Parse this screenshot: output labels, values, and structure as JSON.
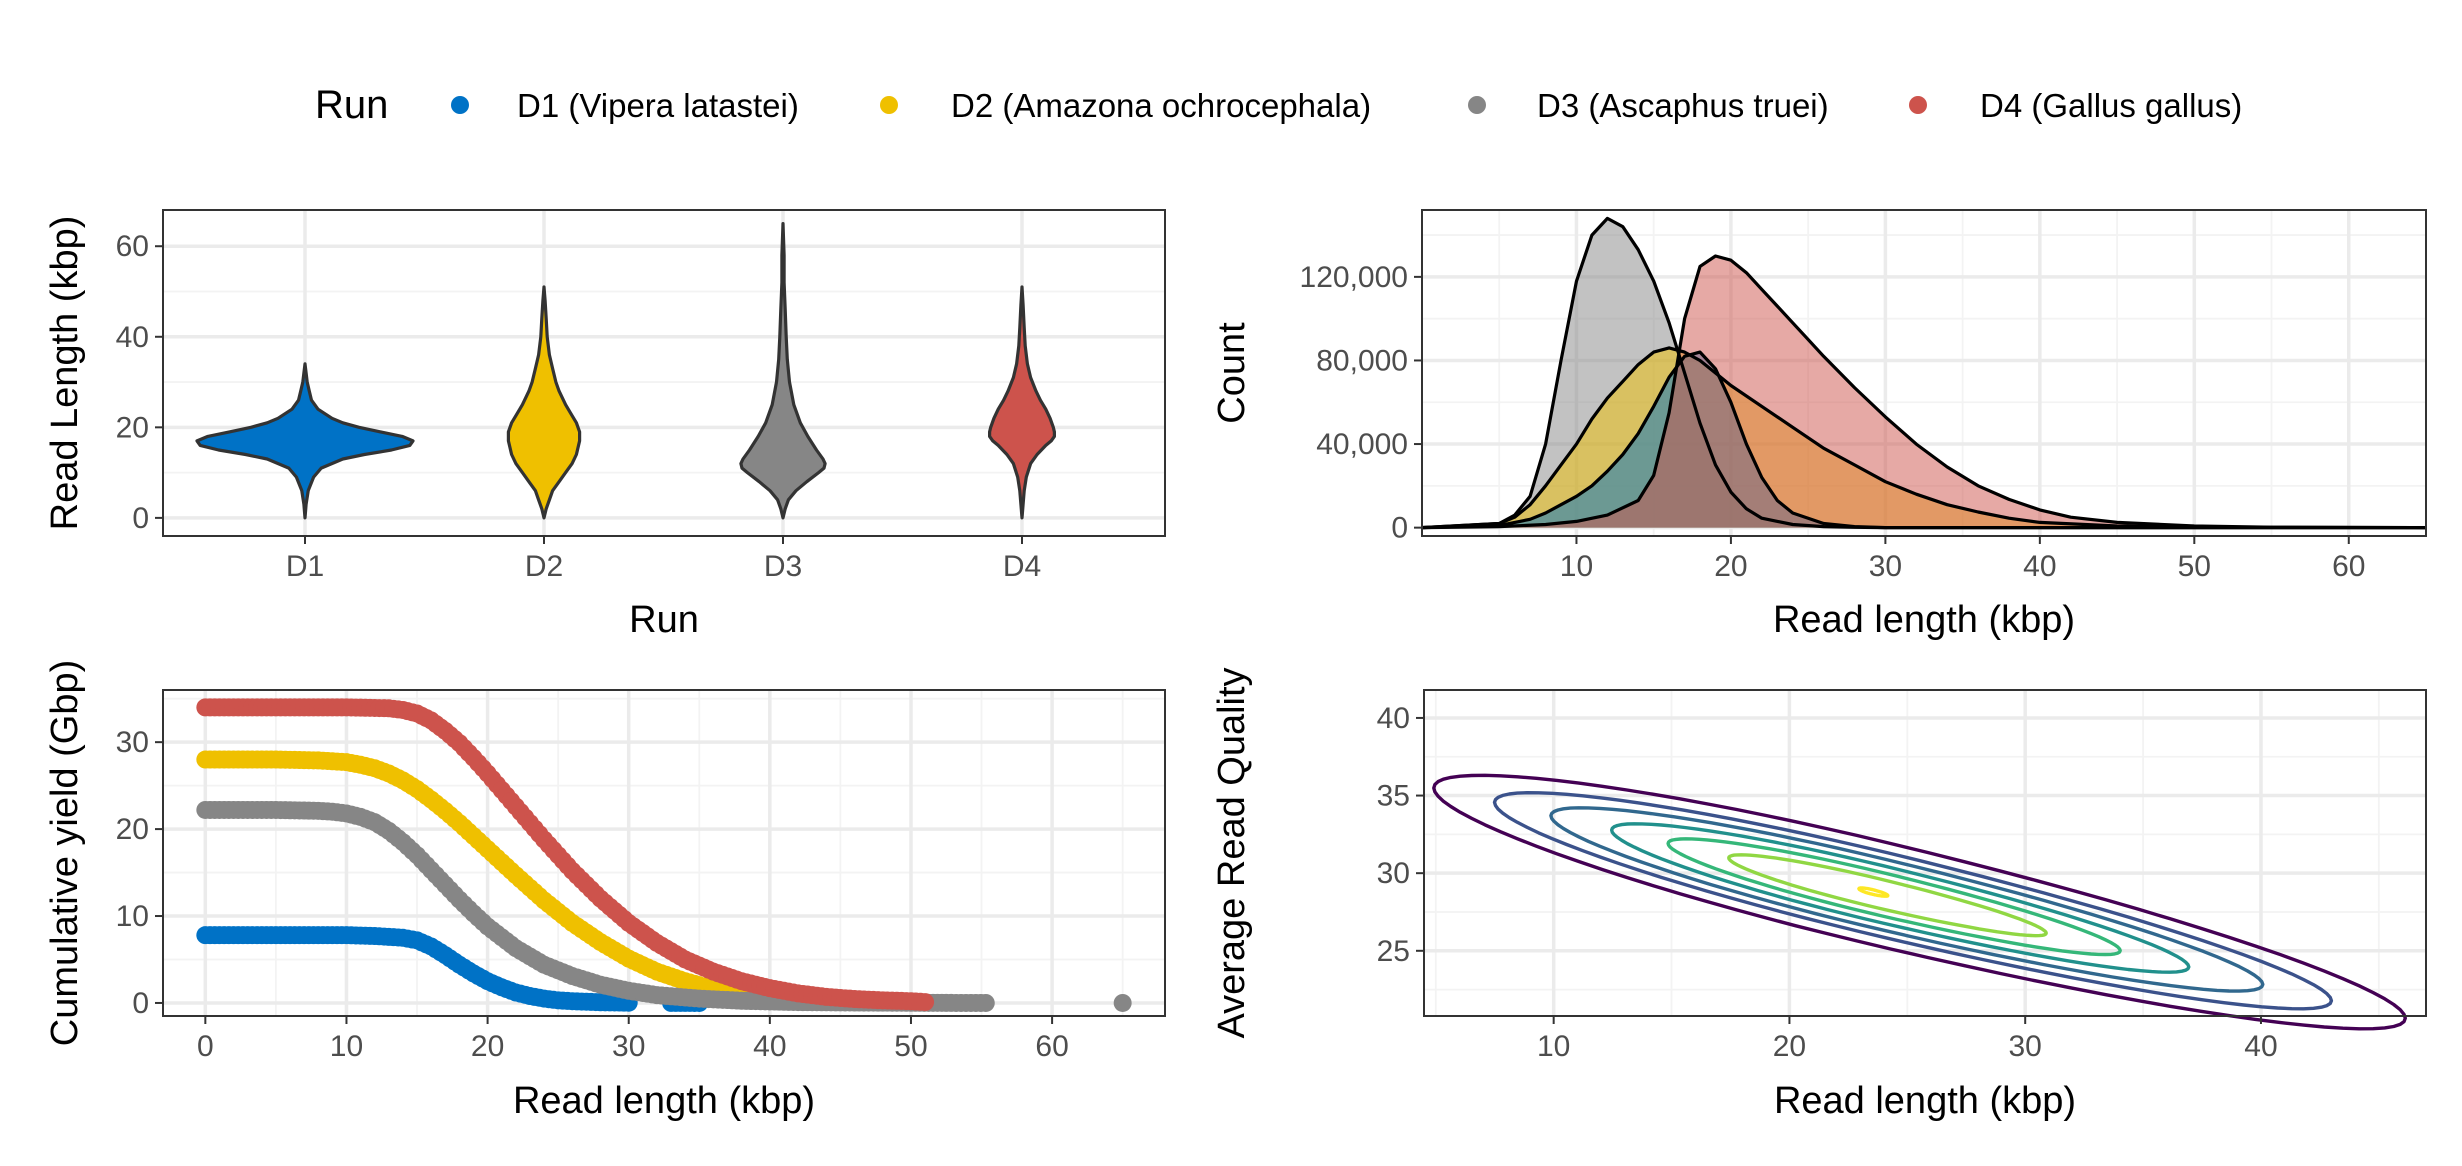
{
  "legend": {
    "title": "Run",
    "items": [
      {
        "label": "D1 (Vipera latastei)",
        "color": "#0072C6"
      },
      {
        "label": "D2 (Amazona ochrocephala)",
        "color": "#EFC000"
      },
      {
        "label": "D3 (Ascaphus truei)",
        "color": "#868686"
      },
      {
        "label": "D4 (Gallus gallus)",
        "color": "#CD534C"
      }
    ]
  },
  "chart_data": [
    {
      "type": "violin",
      "xlabel": "Run",
      "ylabel": "Read Length (kbp)",
      "categories": [
        "D1",
        "D2",
        "D3",
        "D4"
      ],
      "colors": [
        "#0072C6",
        "#EFC000",
        "#868686",
        "#CD534C"
      ],
      "ylim": [
        -4,
        68
      ],
      "yticks": [
        0,
        20,
        40,
        60
      ],
      "violins": [
        {
          "name": "D1",
          "min": 0,
          "max": 34,
          "profile": [
            [
              0,
              0.0
            ],
            [
              3,
              0.01
            ],
            [
              6,
              0.03
            ],
            [
              9,
              0.08
            ],
            [
              11,
              0.15
            ],
            [
              13,
              0.35
            ],
            [
              14,
              0.55
            ],
            [
              15,
              0.8
            ],
            [
              16,
              0.97
            ],
            [
              17,
              1.0
            ],
            [
              18,
              0.9
            ],
            [
              19,
              0.7
            ],
            [
              20,
              0.5
            ],
            [
              21,
              0.35
            ],
            [
              22,
              0.25
            ],
            [
              24,
              0.12
            ],
            [
              26,
              0.06
            ],
            [
              28,
              0.04
            ],
            [
              30,
              0.02
            ],
            [
              32,
              0.01
            ],
            [
              34,
              0.0
            ]
          ]
        },
        {
          "name": "D2",
          "min": 0,
          "max": 51,
          "profile": [
            [
              0,
              0.0
            ],
            [
              2,
              0.02
            ],
            [
              4,
              0.05
            ],
            [
              6,
              0.08
            ],
            [
              8,
              0.14
            ],
            [
              10,
              0.2
            ],
            [
              12,
              0.26
            ],
            [
              14,
              0.3
            ],
            [
              17,
              0.33
            ],
            [
              19,
              0.33
            ],
            [
              21,
              0.3
            ],
            [
              23,
              0.25
            ],
            [
              25,
              0.2
            ],
            [
              28,
              0.14
            ],
            [
              30,
              0.11
            ],
            [
              33,
              0.08
            ],
            [
              36,
              0.05
            ],
            [
              40,
              0.03
            ],
            [
              44,
              0.02
            ],
            [
              48,
              0.01
            ],
            [
              51,
              0.0
            ]
          ]
        },
        {
          "name": "D3",
          "min": 0,
          "max": 65,
          "profile": [
            [
              0,
              0.0
            ],
            [
              2,
              0.02
            ],
            [
              4,
              0.05
            ],
            [
              6,
              0.12
            ],
            [
              8,
              0.22
            ],
            [
              10,
              0.33
            ],
            [
              11,
              0.38
            ],
            [
              12,
              0.39
            ],
            [
              13,
              0.37
            ],
            [
              15,
              0.31
            ],
            [
              18,
              0.23
            ],
            [
              21,
              0.16
            ],
            [
              25,
              0.1
            ],
            [
              30,
              0.06
            ],
            [
              35,
              0.04
            ],
            [
              40,
              0.03
            ],
            [
              46,
              0.02
            ],
            [
              52,
              0.01
            ],
            [
              58,
              0.01
            ],
            [
              65,
              0.0
            ]
          ]
        },
        {
          "name": "D4",
          "min": 0,
          "max": 51,
          "profile": [
            [
              0,
              0.0
            ],
            [
              3,
              0.01
            ],
            [
              6,
              0.02
            ],
            [
              9,
              0.04
            ],
            [
              12,
              0.08
            ],
            [
              14,
              0.14
            ],
            [
              16,
              0.22
            ],
            [
              17,
              0.27
            ],
            [
              18,
              0.3
            ],
            [
              19,
              0.3
            ],
            [
              20,
              0.29
            ],
            [
              22,
              0.26
            ],
            [
              24,
              0.22
            ],
            [
              26,
              0.17
            ],
            [
              28,
              0.13
            ],
            [
              31,
              0.08
            ],
            [
              34,
              0.05
            ],
            [
              38,
              0.03
            ],
            [
              42,
              0.02
            ],
            [
              47,
              0.01
            ],
            [
              51,
              0.0
            ]
          ]
        }
      ]
    },
    {
      "type": "area",
      "xlabel": "Read length (kbp)",
      "ylabel": "Count",
      "xlim": [
        0,
        65
      ],
      "ylim": [
        -4000,
        152000
      ],
      "xticks": [
        10,
        20,
        30,
        40,
        50,
        60
      ],
      "yticks": [
        0,
        40000,
        80000,
        120000
      ],
      "ytick_labels": [
        "0",
        "40,000",
        "80,000",
        "120,000"
      ],
      "fill_opacity": 0.5,
      "series": [
        {
          "color": "#868686",
          "x": [
            0,
            5,
            6,
            7,
            8,
            9,
            10,
            11,
            12,
            13,
            14,
            15,
            16,
            17,
            18,
            19,
            20,
            21,
            22,
            24,
            26,
            28,
            30,
            35,
            40,
            50,
            65
          ],
          "y": [
            0,
            2000,
            6000,
            15000,
            40000,
            80000,
            118000,
            140000,
            148000,
            144000,
            133000,
            118000,
            98000,
            74000,
            50000,
            30000,
            17000,
            9000,
            4500,
            1500,
            500,
            150,
            0,
            0,
            0,
            0,
            0
          ]
        },
        {
          "color": "#EFC000",
          "x": [
            0,
            5,
            6,
            7,
            8,
            9,
            10,
            11,
            12,
            13,
            14,
            15,
            16,
            17,
            18,
            19,
            20,
            22,
            24,
            26,
            28,
            30,
            32,
            34,
            36,
            38,
            40,
            45,
            50,
            65
          ],
          "y": [
            0,
            2000,
            5000,
            11000,
            20000,
            30000,
            40000,
            52000,
            62000,
            70000,
            78000,
            84000,
            86000,
            84000,
            80000,
            74000,
            68000,
            58000,
            48000,
            38000,
            30000,
            22000,
            16000,
            11000,
            7500,
            4500,
            2500,
            800,
            200,
            0
          ]
        },
        {
          "color": "#0072C6",
          "x": [
            0,
            5,
            7,
            8,
            9,
            10,
            11,
            12,
            13,
            14,
            15,
            16,
            17,
            18,
            19,
            20,
            21,
            22,
            23,
            24,
            26,
            28,
            30,
            65
          ],
          "y": [
            0,
            1000,
            4000,
            7000,
            11000,
            15000,
            20000,
            27000,
            35000,
            45000,
            58000,
            72000,
            82000,
            84000,
            76000,
            60000,
            40000,
            24000,
            13000,
            7000,
            2000,
            500,
            0,
            0
          ]
        },
        {
          "color": "#CD534C",
          "x": [
            0,
            5,
            8,
            10,
            12,
            14,
            15,
            16,
            17,
            18,
            19,
            20,
            21,
            22,
            23,
            24,
            25,
            26,
            28,
            30,
            32,
            34,
            36,
            38,
            40,
            42,
            45,
            50,
            55,
            65
          ],
          "y": [
            0,
            500,
            1500,
            3000,
            6000,
            13000,
            25000,
            55000,
            100000,
            125000,
            130000,
            128000,
            122000,
            114000,
            106000,
            98000,
            90000,
            82000,
            67000,
            53000,
            40000,
            29000,
            20000,
            13500,
            8500,
            5000,
            2500,
            800,
            200,
            0
          ]
        }
      ]
    },
    {
      "type": "scatter",
      "xlabel": "Read length (kbp)",
      "ylabel": "Cumulative yield (Gbp)",
      "xlim": [
        -3,
        68
      ],
      "ylim": [
        -1.5,
        36
      ],
      "xticks": [
        0,
        10,
        20,
        30,
        40,
        50,
        60
      ],
      "yticks": [
        0,
        10,
        20,
        30
      ],
      "series": [
        {
          "color": "#0072C6",
          "x": [
            0,
            5,
            10,
            12,
            14,
            15,
            16,
            17,
            18,
            19,
            20,
            21,
            22,
            23,
            24,
            25,
            26,
            28,
            30,
            33,
            35
          ],
          "y": [
            7.8,
            7.8,
            7.8,
            7.7,
            7.5,
            7.2,
            6.5,
            5.5,
            4.4,
            3.4,
            2.5,
            1.8,
            1.2,
            0.8,
            0.5,
            0.3,
            0.2,
            0.08,
            0.03,
            0.01,
            0
          ]
        },
        {
          "color": "#EFC000",
          "x": [
            0,
            5,
            8,
            10,
            11,
            12,
            13,
            14,
            15,
            16,
            17,
            18,
            19,
            20,
            22,
            24,
            26,
            28,
            30,
            32,
            34,
            36,
            38,
            40,
            42,
            44,
            46
          ],
          "y": [
            28,
            28,
            27.9,
            27.7,
            27.4,
            27.0,
            26.4,
            25.6,
            24.6,
            23.4,
            22.1,
            20.7,
            19.2,
            17.7,
            14.7,
            11.8,
            9.2,
            7.0,
            5.1,
            3.6,
            2.5,
            1.6,
            1.0,
            0.6,
            0.35,
            0.2,
            0.1
          ]
        },
        {
          "color": "#868686",
          "x": [
            0,
            5,
            8,
            9,
            10,
            11,
            12,
            13,
            14,
            15,
            16,
            17,
            18,
            19,
            20,
            22,
            24,
            26,
            28,
            30,
            32,
            35,
            38,
            42,
            46,
            50,
            52.5,
            53.2,
            55.3,
            65
          ],
          "y": [
            22.2,
            22.2,
            22.1,
            22.0,
            21.8,
            21.4,
            20.8,
            19.8,
            18.5,
            17.0,
            15.3,
            13.6,
            11.9,
            10.3,
            8.8,
            6.3,
            4.4,
            3.1,
            2.1,
            1.4,
            0.9,
            0.5,
            0.25,
            0.1,
            0.05,
            0.02,
            0.01,
            0,
            0,
            0
          ]
        },
        {
          "color": "#CD534C",
          "x": [
            0,
            5,
            10,
            13,
            14,
            15,
            16,
            17,
            18,
            19,
            20,
            21,
            22,
            24,
            26,
            28,
            30,
            32,
            34,
            36,
            38,
            40,
            42,
            44,
            46,
            48,
            50,
            51
          ],
          "y": [
            34,
            34,
            34,
            33.9,
            33.7,
            33.3,
            32.5,
            31.3,
            29.9,
            28.2,
            26.4,
            24.5,
            22.6,
            18.8,
            15.2,
            12.0,
            9.2,
            6.9,
            5.0,
            3.6,
            2.5,
            1.7,
            1.1,
            0.7,
            0.45,
            0.3,
            0.2,
            0.1
          ]
        }
      ]
    },
    {
      "type": "contour",
      "xlabel": "Read length (kbp)",
      "ylabel": "Average Read Quality",
      "xlim": [
        4.5,
        47
      ],
      "ylim": [
        20.8,
        41.8
      ],
      "xticks": [
        10,
        20,
        30,
        40
      ],
      "yticks": [
        25,
        30,
        35,
        40
      ],
      "center": [
        23.5,
        28.8
      ],
      "levels": [
        {
          "color": "#440154",
          "a": 20.2,
          "b": 3.4
        },
        {
          "color": "#3B528B",
          "a": 17.4,
          "b": 2.75
        },
        {
          "color": "#31688E",
          "a": 14.8,
          "b": 2.3
        },
        {
          "color": "#21908C",
          "a": 12.0,
          "b": 1.85
        },
        {
          "color": "#35B779",
          "a": 9.4,
          "b": 1.4
        },
        {
          "color": "#90D743",
          "a": 6.6,
          "b": 0.95
        },
        {
          "color": "#FDE725",
          "a": 0.6,
          "b": 0.15
        }
      ]
    }
  ]
}
